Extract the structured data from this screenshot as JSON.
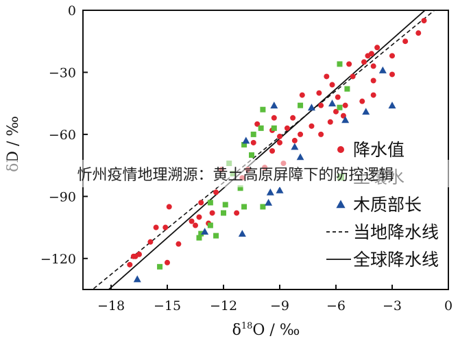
{
  "overlay_caption": "忻州疫情地理溯源：黄土高原屏障下的防控逻辑",
  "chart_data": {
    "type": "scatter",
    "xlabel": "δ18O / ‰",
    "ylabel": "δD / ‰",
    "xlim": [
      -19.5,
      0
    ],
    "ylim": [
      -135,
      0
    ],
    "xticks": [
      -18,
      -15,
      -12,
      -9,
      -6,
      -3,
      0
    ],
    "yticks": [
      0,
      -30,
      -60,
      -90,
      -120
    ],
    "x_tick_labels": [
      "−18",
      "−15",
      "−12",
      "−9",
      "−6",
      "−3",
      "0"
    ],
    "y_tick_labels": [
      "0",
      "−30",
      "−60",
      "−90",
      "−120"
    ],
    "grid": false,
    "legend_position": "right",
    "series": [
      {
        "name": "降水值",
        "marker": "circle",
        "color": "#e0242f",
        "points": [
          [
            -1.3,
            -5
          ],
          [
            -1.6,
            -11
          ],
          [
            -2.3,
            -15
          ],
          [
            -3.0,
            -22
          ],
          [
            -3.0,
            -31
          ],
          [
            -3.8,
            -18
          ],
          [
            -4.1,
            -21
          ],
          [
            -4.0,
            -27
          ],
          [
            -4.3,
            -22
          ],
          [
            -4.5,
            -25
          ],
          [
            -4.0,
            -34
          ],
          [
            -4.0,
            -41
          ],
          [
            -4.6,
            -44
          ],
          [
            -5.3,
            -26
          ],
          [
            -5.1,
            -32
          ],
          [
            -5.5,
            -46
          ],
          [
            -5.6,
            -51
          ],
          [
            -5.9,
            -42
          ],
          [
            -6.2,
            -36
          ],
          [
            -6.0,
            -49
          ],
          [
            -6.3,
            -54
          ],
          [
            -6.5,
            -32
          ],
          [
            -6.8,
            -46
          ],
          [
            -6.8,
            -60
          ],
          [
            -6.9,
            -40
          ],
          [
            -7.3,
            -56
          ],
          [
            -7.8,
            -41
          ],
          [
            -7.9,
            -60
          ],
          [
            -8.2,
            -63
          ],
          [
            -8.3,
            -52
          ],
          [
            -8.6,
            -57
          ],
          [
            -8.8,
            -74
          ],
          [
            -9.0,
            -61
          ],
          [
            -9.0,
            -64
          ],
          [
            -9.3,
            -52
          ],
          [
            -9.4,
            -58
          ],
          [
            -9.4,
            -68
          ],
          [
            -9.8,
            -76
          ],
          [
            -10.2,
            -55
          ],
          [
            -10.4,
            -64
          ],
          [
            -10.7,
            -77
          ],
          [
            -11.0,
            -81
          ],
          [
            -11.3,
            -98
          ],
          [
            -12.1,
            -77
          ],
          [
            -12.4,
            -88
          ],
          [
            -12.8,
            -103
          ],
          [
            -12.6,
            -98
          ],
          [
            -13.2,
            -93
          ],
          [
            -13.3,
            -100
          ],
          [
            -13.5,
            -104
          ],
          [
            -13.7,
            -102
          ],
          [
            -14.4,
            -113
          ],
          [
            -14.9,
            -95
          ],
          [
            -15.1,
            -105
          ],
          [
            -15.0,
            -122
          ],
          [
            -15.6,
            -105
          ],
          [
            -15.9,
            -112
          ],
          [
            -16.5,
            -118
          ],
          [
            -16.7,
            -119
          ],
          [
            -16.8,
            -119
          ],
          [
            -17.0,
            -123
          ]
        ]
      },
      {
        "name": "土壤水",
        "marker": "square",
        "color": "#5bbd3c",
        "points": [
          [
            -5.8,
            -26
          ],
          [
            -5.4,
            -38
          ],
          [
            -5.8,
            -47
          ],
          [
            -7.9,
            -46
          ],
          [
            -9.9,
            -48
          ],
          [
            -9.3,
            -57
          ],
          [
            -10.0,
            -57
          ],
          [
            -10.4,
            -60
          ],
          [
            -10.9,
            -65
          ],
          [
            -10.5,
            -70
          ],
          [
            -11.7,
            -74
          ],
          [
            -11.5,
            -79
          ],
          [
            -11.1,
            -86
          ],
          [
            -9.9,
            -95
          ],
          [
            -10.9,
            -95
          ],
          [
            -11.9,
            -94
          ],
          [
            -12.0,
            -98
          ],
          [
            -12.7,
            -93
          ],
          [
            -12.7,
            -104
          ],
          [
            -12.4,
            -109
          ],
          [
            -13.2,
            -108
          ],
          [
            -13.3,
            -110
          ],
          [
            -15.4,
            -124
          ]
        ]
      },
      {
        "name": "木质部长",
        "marker": "triangle",
        "color": "#1f4f9c",
        "points": [
          [
            -3.5,
            -29
          ],
          [
            -3.0,
            -46
          ],
          [
            -4.4,
            -49
          ],
          [
            -5.5,
            -53
          ],
          [
            -6.2,
            -45
          ],
          [
            -7.3,
            -47
          ],
          [
            -9.3,
            -46
          ],
          [
            -8.2,
            -66
          ],
          [
            -7.9,
            -71
          ],
          [
            -9.0,
            -87
          ],
          [
            -9.5,
            -88
          ],
          [
            -10.8,
            -63
          ],
          [
            -9.6,
            -93
          ],
          [
            -11.0,
            -108
          ],
          [
            -13.0,
            -107
          ],
          [
            -16.6,
            -130
          ]
        ]
      }
    ],
    "lines": [
      {
        "name": "当地降水线",
        "style": "dashed",
        "color": "#111111",
        "slope": 7.4,
        "intercept": 5.5
      },
      {
        "name": "全球降水线",
        "style": "solid",
        "color": "#111111",
        "slope": 8,
        "intercept": 10
      }
    ]
  }
}
